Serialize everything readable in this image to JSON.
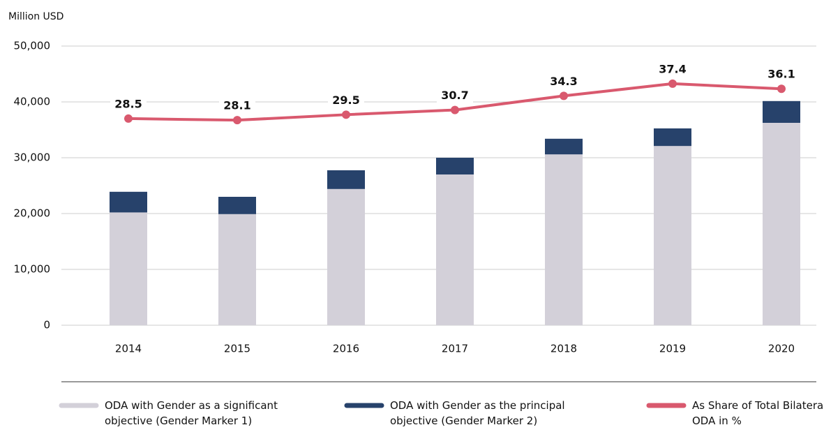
{
  "chart_data": {
    "type": "bar_line",
    "y_axis_label": "Million USD",
    "categories": [
      "2014",
      "2015",
      "2016",
      "2017",
      "2018",
      "2019",
      "2020"
    ],
    "series": [
      {
        "name": "ODA with Gender as a significant objective (Gender Marker 1)",
        "type": "bar",
        "color": "#d3d0d9",
        "values": [
          20200,
          19900,
          24400,
          27000,
          30600,
          32100,
          36250
        ]
      },
      {
        "name": "ODA with Gender as the principal objective (Gender Marker 2)",
        "type": "bar",
        "color": "#27426b",
        "values": [
          3700,
          3100,
          3350,
          3000,
          2800,
          3150,
          3900
        ]
      },
      {
        "name": "As Share of Total Bilateral ODA in %",
        "type": "line",
        "axis": "y2",
        "color": "#d9596e",
        "values": [
          28.5,
          28.1,
          29.5,
          30.7,
          34.3,
          37.4,
          36.1
        ]
      }
    ],
    "stacked": true,
    "ylim": [
      0,
      50000
    ],
    "yticks": [
      0,
      {
        "value": 10000,
        "label": "10,000"
      },
      {
        "value": 20000,
        "label": "20,000"
      },
      {
        "value": 30000,
        "label": "30,000"
      },
      {
        "value": 40000,
        "label": "40,000"
      },
      {
        "value": 50000,
        "label": "50,000"
      }
    ],
    "y2lim": [
      -24.2,
      47
    ],
    "grid": true,
    "legend": "bottom"
  }
}
